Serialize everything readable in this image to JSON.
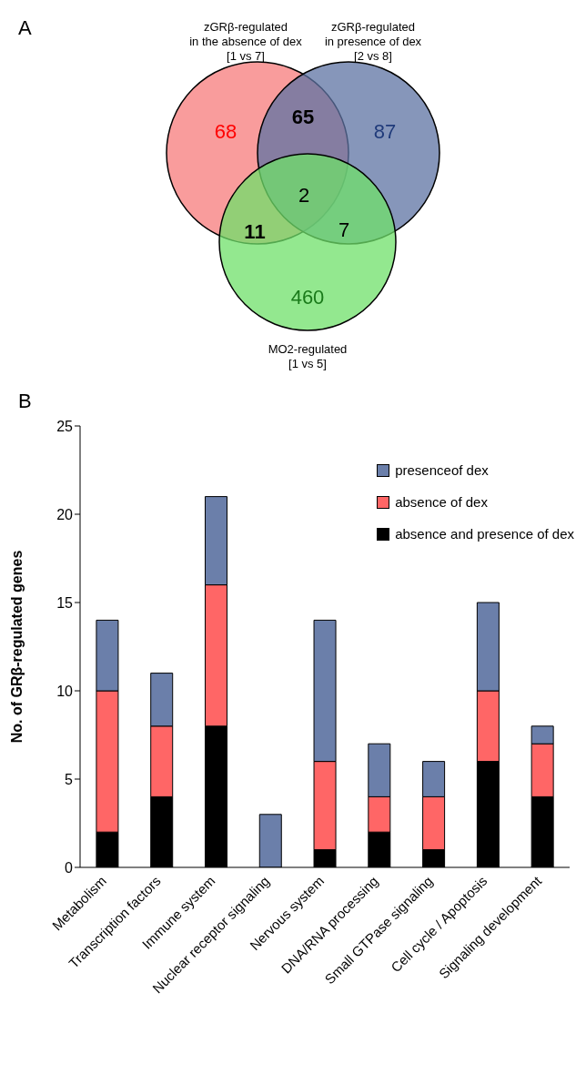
{
  "chart_data": [
    {
      "type": "other",
      "title": "A",
      "annotations": [
        "zGRβ-regulated\nin the absence of dex\n[1 vs 7]",
        "zGRβ-regulated\nin presence of dex\n[2 vs 8]",
        "MO2-regulated\n[1 vs 5]",
        "68",
        "87",
        "460",
        "65",
        "11",
        "7",
        "2"
      ]
    },
    {
      "type": "bar",
      "title": "B",
      "stacked": true,
      "ylabel": "No. of GRβ-regulated genes",
      "legend": "top right",
      "categories": [
        "Metabolism",
        "Transcription factors",
        "Immune system",
        "Nuclear receptor signaling",
        "Nervous system",
        "DNA/RNA processing",
        "Small GTPase signaling",
        "Cell cycle / Apoptosis",
        "Signaling development"
      ],
      "series": [
        {
          "name": "absence and presence of dex",
          "color": "#000000",
          "values": [
            2,
            4,
            8,
            0,
            1,
            2,
            1,
            6,
            4
          ]
        },
        {
          "name": "absence of dex",
          "color": "#ff6666",
          "values": [
            8,
            4,
            8,
            0,
            5,
            2,
            3,
            4,
            3
          ]
        },
        {
          "name": "presenceof dex",
          "color": "#6b7faa",
          "values": [
            4,
            3,
            5,
            3,
            8,
            3,
            2,
            5,
            1
          ]
        }
      ],
      "ylim": [
        0,
        25
      ],
      "yticks": [
        0,
        5,
        10,
        15,
        20,
        25
      ]
    }
  ]
}
